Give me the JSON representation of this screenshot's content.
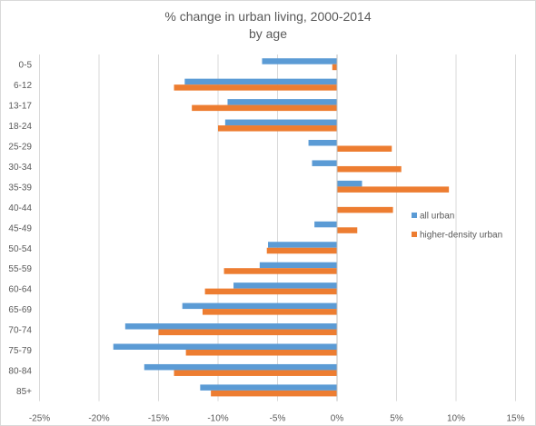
{
  "chart_data": {
    "type": "bar",
    "orientation": "horizontal",
    "title": "% change in urban living, 2000-2014",
    "subtitle": "by age",
    "categories": [
      "0-5",
      "6-12",
      "13-17",
      "18-24",
      "25-29",
      "30-34",
      "35-39",
      "40-44",
      "45-49",
      "50-54",
      "55-59",
      "60-64",
      "65-69",
      "70-74",
      "75-79",
      "80-84",
      "85+"
    ],
    "series": [
      {
        "name": "all urban",
        "color": "#5b9bd5",
        "values": [
          -6.3,
          -12.8,
          -9.2,
          -9.4,
          -2.4,
          -2.1,
          2.1,
          0,
          -1.9,
          -5.8,
          -6.5,
          -8.7,
          -13.0,
          -17.8,
          -18.8,
          -16.2,
          -11.5
        ]
      },
      {
        "name": "higher-density urban",
        "color": "#ed7d31",
        "values": [
          -0.4,
          -13.7,
          -12.2,
          -10.0,
          4.6,
          5.4,
          9.4,
          4.7,
          1.7,
          -5.9,
          -9.5,
          -11.1,
          -11.3,
          -15.0,
          -12.7,
          -13.7,
          -10.6
        ]
      }
    ],
    "xlim": [
      -25,
      15
    ],
    "xticks": [
      "-25%",
      "-20%",
      "-15%",
      "-10%",
      "-5%",
      "0%",
      "5%",
      "10%",
      "15%"
    ],
    "grid": true,
    "legend": "right"
  }
}
